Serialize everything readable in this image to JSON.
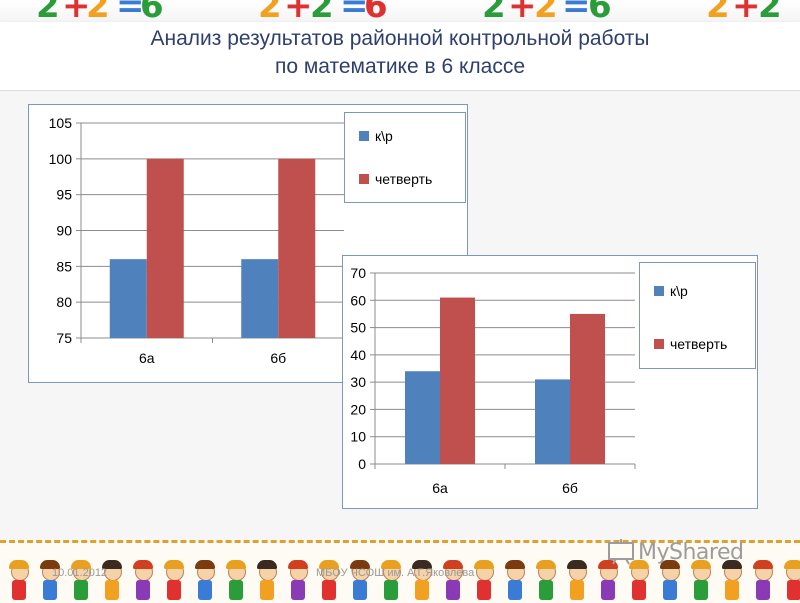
{
  "title": {
    "line1": "Анализ результатов районной контрольной работы",
    "line2": "по математике в 6 классе"
  },
  "colors": {
    "series1": "#4f81bd",
    "series2": "#c0504d",
    "title": "#2e3f6e",
    "panel_border": "#7f97bf"
  },
  "chart_data": [
    {
      "type": "bar",
      "categories": [
        "6а",
        "6б"
      ],
      "series": [
        {
          "name": "к\\р",
          "values": [
            86,
            86
          ]
        },
        {
          "name": "четверть",
          "values": [
            100,
            100
          ]
        }
      ],
      "ylim": [
        75,
        105
      ],
      "yticks": [
        75,
        80,
        85,
        90,
        95,
        100,
        105
      ],
      "legend": "right",
      "grid": true
    },
    {
      "type": "bar",
      "categories": [
        "6а",
        "6б"
      ],
      "series": [
        {
          "name": "к\\р",
          "values": [
            34,
            31
          ]
        },
        {
          "name": "четверть",
          "values": [
            61,
            55
          ]
        }
      ],
      "ylim": [
        0,
        70
      ],
      "yticks": [
        0,
        10,
        20,
        30,
        40,
        50,
        60,
        70
      ],
      "legend": "right",
      "grid": true
    }
  ],
  "footer": {
    "date": "10.01.2012",
    "school": "МБОУ ЧСОШ им. А.Г.Яковлева",
    "watermark": "MyShared"
  }
}
